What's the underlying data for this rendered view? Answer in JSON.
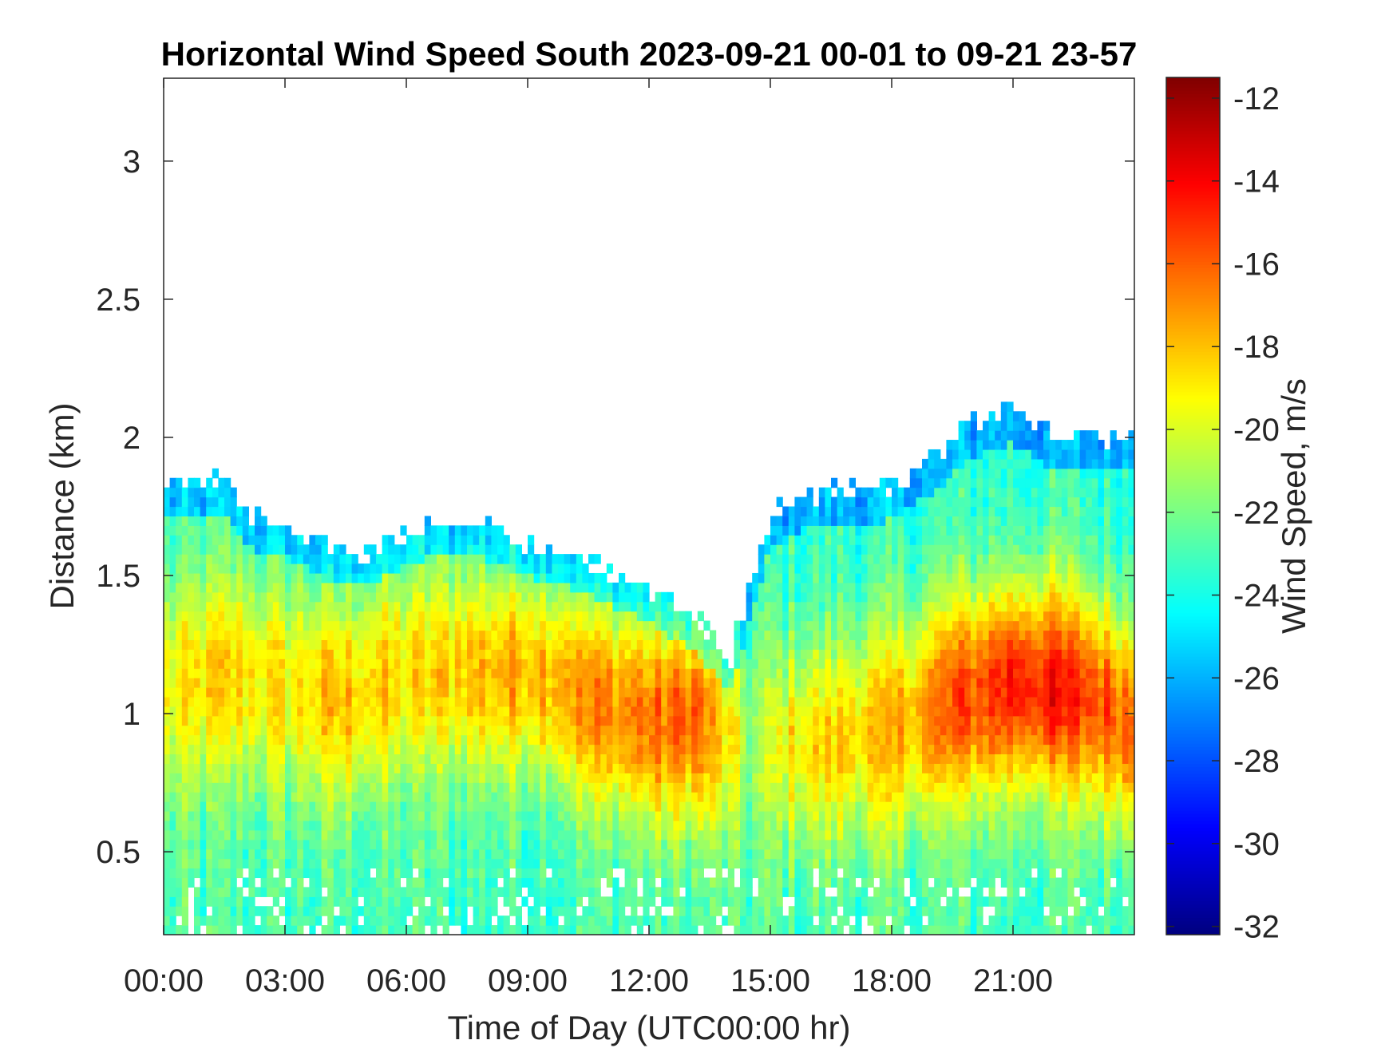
{
  "chart_data": {
    "type": "heatmap",
    "title": "Horizontal Wind Speed South 2023-09-21 00-01 to 09-21 23-57",
    "xlabel": "Time of Day (UTC00:00 hr)",
    "ylabel": "Distance (km)",
    "xlim": [
      0,
      24
    ],
    "ylim": [
      0.2,
      3.3
    ],
    "x_ticks": [
      0,
      3,
      6,
      9,
      12,
      15,
      18,
      21
    ],
    "x_tick_labels": [
      "00:00",
      "03:00",
      "06:00",
      "09:00",
      "12:00",
      "15:00",
      "18:00",
      "21:00"
    ],
    "y_ticks": [
      0.5,
      1,
      1.5,
      2,
      2.5,
      3
    ],
    "y_tick_labels": [
      "0.5",
      "1",
      "1.5",
      "2",
      "2.5",
      "3"
    ],
    "colorbar": {
      "label": "Wind Speed, m/s",
      "colormap": "jet",
      "range": [
        -32.2,
        -11.5
      ],
      "ticks": [
        -12,
        -14,
        -16,
        -18,
        -20,
        -22,
        -24,
        -26,
        -28,
        -30,
        -32
      ],
      "tick_labels": [
        "-12",
        "-14",
        "-16",
        "-18",
        "-20",
        "-22",
        "-24",
        "-26",
        "-28",
        "-30",
        "-32"
      ]
    },
    "data_top_km": [
      [
        0.0,
        1.82
      ],
      [
        1.5,
        1.85
      ],
      [
        2.0,
        1.72
      ],
      [
        3.0,
        1.7
      ],
      [
        4.0,
        1.6
      ],
      [
        5.0,
        1.58
      ],
      [
        6.0,
        1.66
      ],
      [
        7.0,
        1.7
      ],
      [
        8.0,
        1.68
      ],
      [
        9.0,
        1.62
      ],
      [
        10.0,
        1.58
      ],
      [
        11.0,
        1.52
      ],
      [
        12.0,
        1.45
      ],
      [
        13.0,
        1.36
      ],
      [
        14.0,
        1.2
      ],
      [
        15.0,
        1.72
      ],
      [
        16.0,
        1.8
      ],
      [
        18.0,
        1.82
      ],
      [
        19.0,
        1.92
      ],
      [
        20.0,
        2.05
      ],
      [
        21.0,
        2.1
      ],
      [
        22.0,
        2.0
      ],
      [
        24.0,
        2.0
      ]
    ],
    "wind_field_m_per_s": [
      {
        "time_hr": 0.0,
        "core_height_km": 1.1,
        "core_speed": -19.5
      },
      {
        "time_hr": 1.5,
        "core_height_km": 1.15,
        "core_speed": -18.5
      },
      {
        "time_hr": 3.0,
        "core_height_km": 1.1,
        "core_speed": -19.0
      },
      {
        "time_hr": 4.5,
        "core_height_km": 1.05,
        "core_speed": -18.0
      },
      {
        "time_hr": 6.0,
        "core_height_km": 1.15,
        "core_speed": -18.8
      },
      {
        "time_hr": 7.5,
        "core_height_km": 1.15,
        "core_speed": -18.0
      },
      {
        "time_hr": 9.0,
        "core_height_km": 1.15,
        "core_speed": -17.5
      },
      {
        "time_hr": 10.5,
        "core_height_km": 1.05,
        "core_speed": -17.0
      },
      {
        "time_hr": 12.0,
        "core_height_km": 0.98,
        "core_speed": -16.5
      },
      {
        "time_hr": 13.2,
        "core_height_km": 0.98,
        "core_speed": -16.0
      },
      {
        "time_hr": 14.5,
        "core_height_km": 0.9,
        "core_speed": -21.5
      },
      {
        "time_hr": 15.5,
        "core_height_km": 0.9,
        "core_speed": -19.0
      },
      {
        "time_hr": 16.5,
        "core_height_km": 0.9,
        "core_speed": -18.5
      },
      {
        "time_hr": 18.0,
        "core_height_km": 0.95,
        "core_speed": -18.0
      },
      {
        "time_hr": 19.5,
        "core_height_km": 1.05,
        "core_speed": -16.0
      },
      {
        "time_hr": 21.0,
        "core_height_km": 1.1,
        "core_speed": -14.5
      },
      {
        "time_hr": 22.0,
        "core_height_km": 1.1,
        "core_speed": -14.5
      },
      {
        "time_hr": 23.0,
        "core_height_km": 1.05,
        "core_speed": -15.5
      },
      {
        "time_hr": 24.0,
        "core_height_km": 0.95,
        "core_speed": -16.0
      }
    ],
    "upper_band_speed": -23.5,
    "lower_band_speed": -23.0
  }
}
